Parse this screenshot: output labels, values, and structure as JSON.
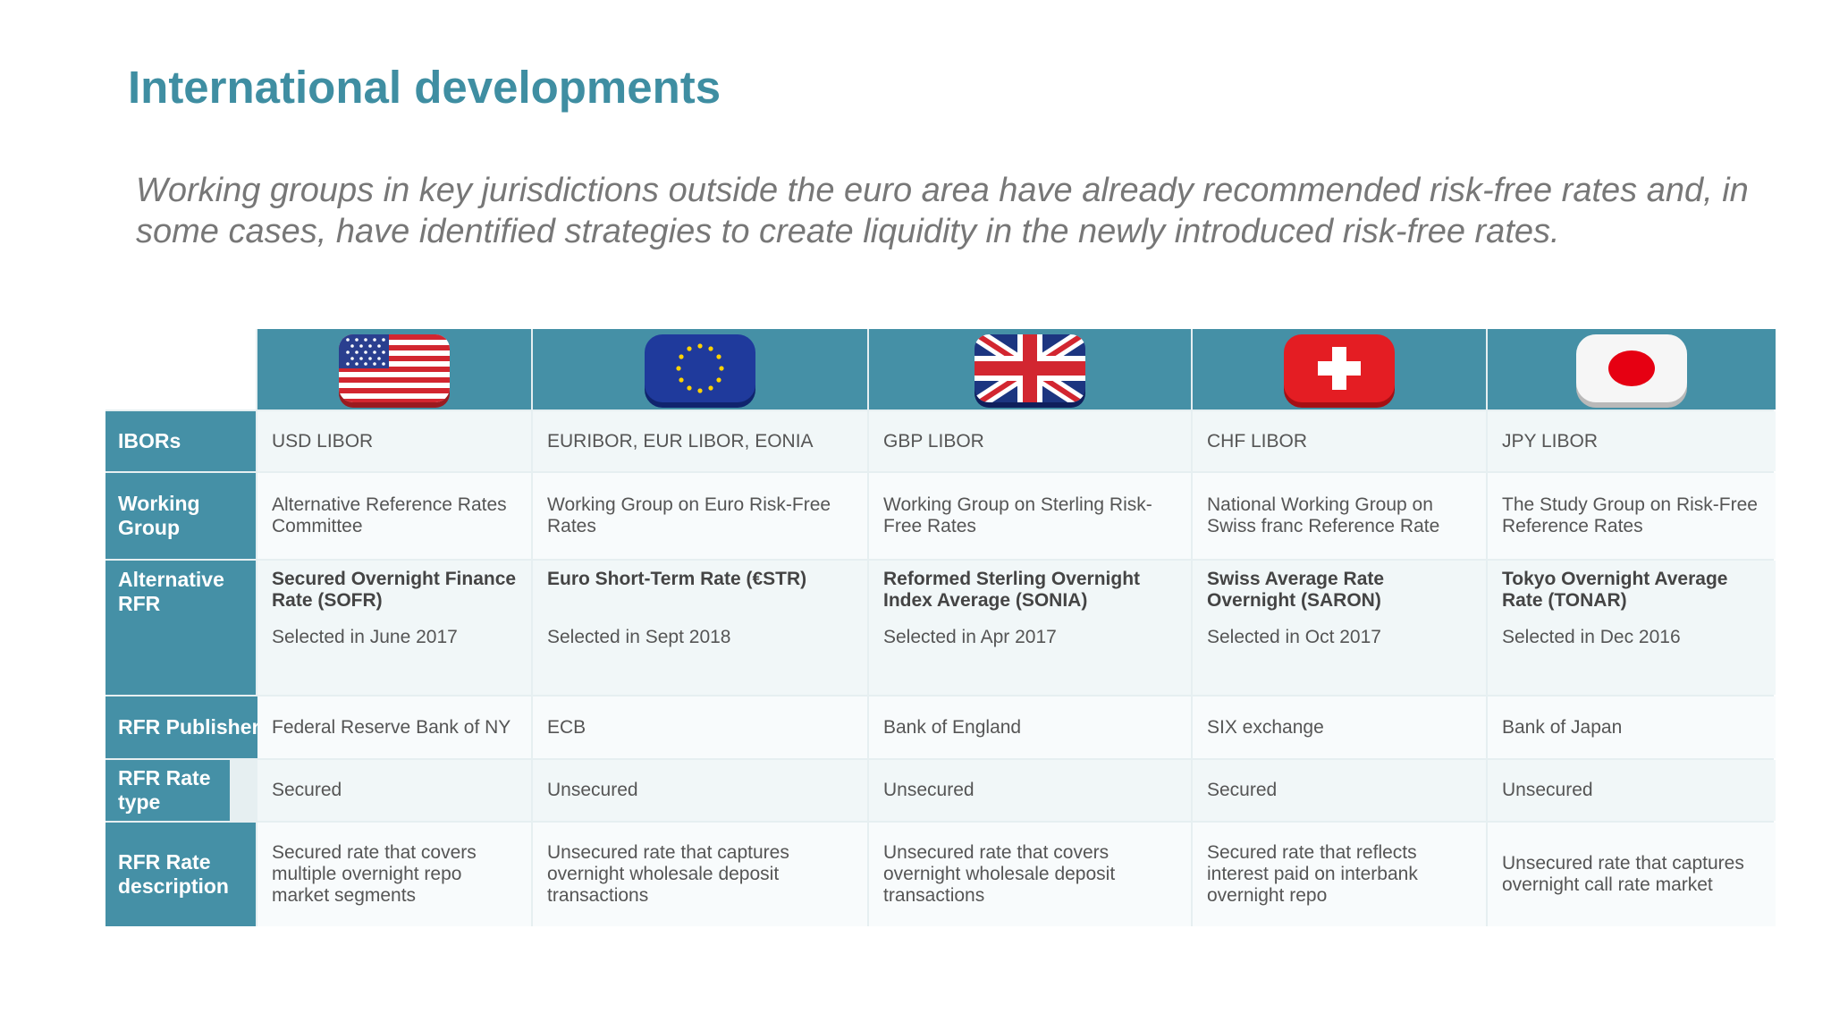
{
  "title": "International developments",
  "subtitle": "Working groups in key jurisdictions outside the euro area have already recommended risk-free rates and, in some cases, have identified strategies to create liquidity in the newly introduced risk-free rates.",
  "colors": {
    "header_bg": "#4590a6",
    "title": "#3f8ea2",
    "subtitle": "#777777"
  },
  "flags": [
    {
      "icon": "us-flag-icon"
    },
    {
      "icon": "eu-flag-icon"
    },
    {
      "icon": "uk-flag-icon"
    },
    {
      "icon": "swiss-flag-icon"
    },
    {
      "icon": "japan-flag-icon"
    }
  ],
  "row_labels": {
    "ibors": "IBORs",
    "working_group": "Working Group",
    "alternative_rfr": "Alternative RFR",
    "rfr_publisher": "RFR Publisher",
    "rfr_rate_type": "RFR Rate type",
    "rfr_rate_description": "RFR Rate description"
  },
  "columns": [
    {
      "ibors": "USD LIBOR",
      "working_group": "Alternative Reference Rates Committee",
      "rfr_name": "Secured Overnight Finance Rate (SOFR)",
      "rfr_selected": "Selected in June 2017",
      "publisher": "Federal Reserve Bank of NY",
      "rate_type": "Secured",
      "description": "Secured rate that covers multiple overnight repo market segments"
    },
    {
      "ibors": "EURIBOR, EUR LIBOR, EONIA",
      "working_group": "Working Group on Euro Risk-Free Rates",
      "rfr_name": "Euro Short-Term Rate (€STR)",
      "rfr_selected": "Selected in Sept 2018",
      "publisher": "ECB",
      "rate_type": "Unsecured",
      "description": "Unsecured rate that captures overnight wholesale deposit transactions"
    },
    {
      "ibors": "GBP LIBOR",
      "working_group": "Working Group on Sterling Risk-Free Rates",
      "rfr_name": "Reformed Sterling Overnight Index Average (SONIA)",
      "rfr_selected": "Selected in Apr 2017",
      "publisher": "Bank of England",
      "rate_type": "Unsecured",
      "description": "Unsecured rate that covers overnight wholesale deposit transactions"
    },
    {
      "ibors": "CHF LIBOR",
      "working_group": "National Working Group on Swiss franc Reference Rate",
      "rfr_name": "Swiss Average Rate Overnight (SARON)",
      "rfr_selected": "Selected in Oct 2017",
      "publisher": "SIX exchange",
      "rate_type": "Secured",
      "description": "Secured rate that reflects interest paid on interbank overnight repo"
    },
    {
      "ibors": "JPY LIBOR",
      "working_group": "The Study Group on Risk-Free Reference Rates",
      "rfr_name": "Tokyo Overnight Average Rate (TONAR)",
      "rfr_selected": "Selected in Dec 2016",
      "publisher": "Bank of Japan",
      "rate_type": "Unsecured",
      "description": "Unsecured rate that captures overnight call rate market"
    }
  ]
}
